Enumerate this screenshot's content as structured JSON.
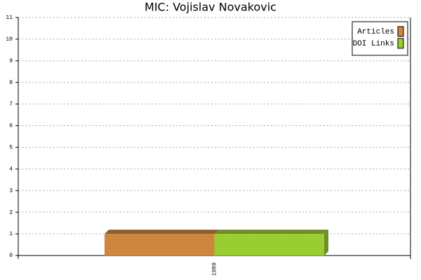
{
  "chart_data": {
    "type": "bar",
    "title": "MIC: Vojislav Novakovic",
    "categories": [
      "1989"
    ],
    "series": [
      {
        "name": "Articles",
        "color": "#cd853f",
        "values": [
          1
        ]
      },
      {
        "name": "DOI Links",
        "color": "#9acd32",
        "values": [
          1
        ]
      }
    ],
    "ylim": [
      0,
      11
    ],
    "yticks": [
      0,
      1,
      2,
      3,
      4,
      5,
      6,
      7,
      8,
      9,
      10,
      11
    ],
    "grid": true,
    "legend": "upper right"
  }
}
